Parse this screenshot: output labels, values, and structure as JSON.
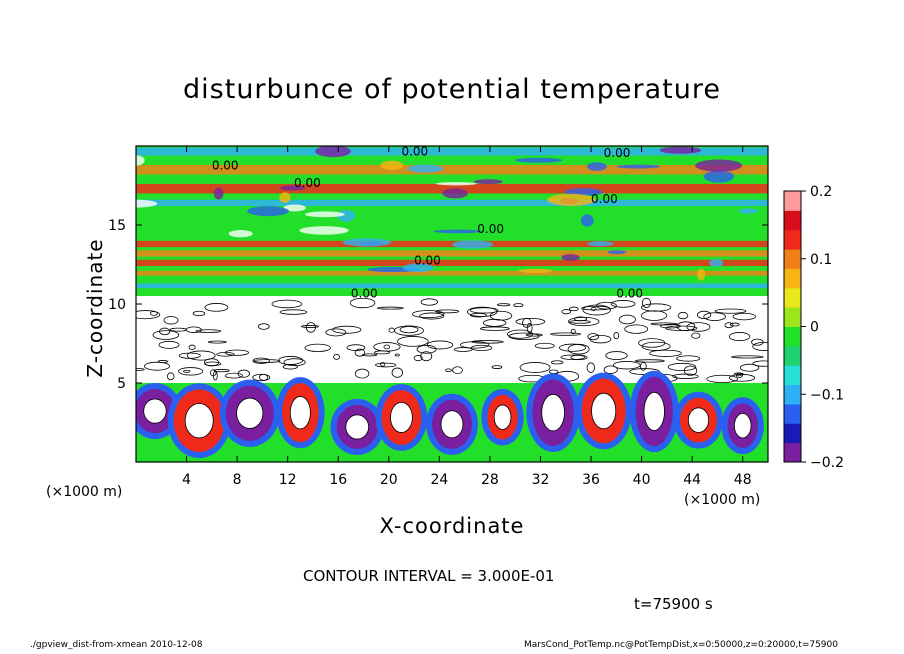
{
  "chart_data": {
    "type": "heatmap",
    "title": "disturbunce of potential temperature",
    "xlabel": "X-coordinate",
    "ylabel": "Z-coordinate",
    "x_unit": "(×1000 m)",
    "x_unit_right": "(×1000 m)",
    "xlim": [
      0,
      50
    ],
    "ylim": [
      0,
      20
    ],
    "x_ticks": [
      4,
      8,
      12,
      16,
      20,
      24,
      28,
      32,
      36,
      40,
      44,
      48
    ],
    "y_ticks": [
      5,
      10,
      15
    ],
    "colorbar": {
      "range": [
        -0.2,
        0.2
      ],
      "ticks": [
        0.2,
        0.1,
        0,
        -0.1,
        -0.2
      ],
      "tick_labels": [
        "0.2",
        "0.1",
        "0",
        "−0.1",
        "−0.2"
      ],
      "colors": [
        "#7a1fa0",
        "#1a1ab8",
        "#2a60f0",
        "#2fb0f5",
        "#29e0d8",
        "#20d070",
        "#22e02a",
        "#9be61a",
        "#e8e81a",
        "#f8b412",
        "#f0801a",
        "#f02a1a",
        "#d80f1a",
        "#ff9a9a"
      ]
    },
    "contour_labels": [
      "0.00",
      "0.00",
      "0.00",
      "0.00",
      "0.00",
      "0.00",
      "0.00",
      "0.00",
      "0.00"
    ],
    "layers": [
      {
        "z_range": [
          0,
          5
        ],
        "pattern": "convective rolls",
        "colors": [
          "#ffffff",
          "#f02a1a",
          "#2a60f0",
          "#22e02a",
          "#7a1fa0"
        ]
      },
      {
        "z_range": [
          5,
          10.5
        ],
        "pattern": "dense contours",
        "colors": [
          "#ffffff",
          "#000000"
        ]
      },
      {
        "z_range": [
          10.5,
          20
        ],
        "pattern": "horizontal bands",
        "colors": [
          "#22e02a",
          "#f0801a",
          "#f02a1a",
          "#2fb0f5"
        ]
      }
    ]
  },
  "annotations": {
    "contour_interval": "CONTOUR INTERVAL = 3.000E-01",
    "time": "t=75900  s",
    "footer_left": "./gpview_dist-from-xmean  2010-12-08",
    "footer_right": "MarsCond_PotTemp.nc@PotTempDist,x=0:50000,z=0:20000,t=75900"
  }
}
